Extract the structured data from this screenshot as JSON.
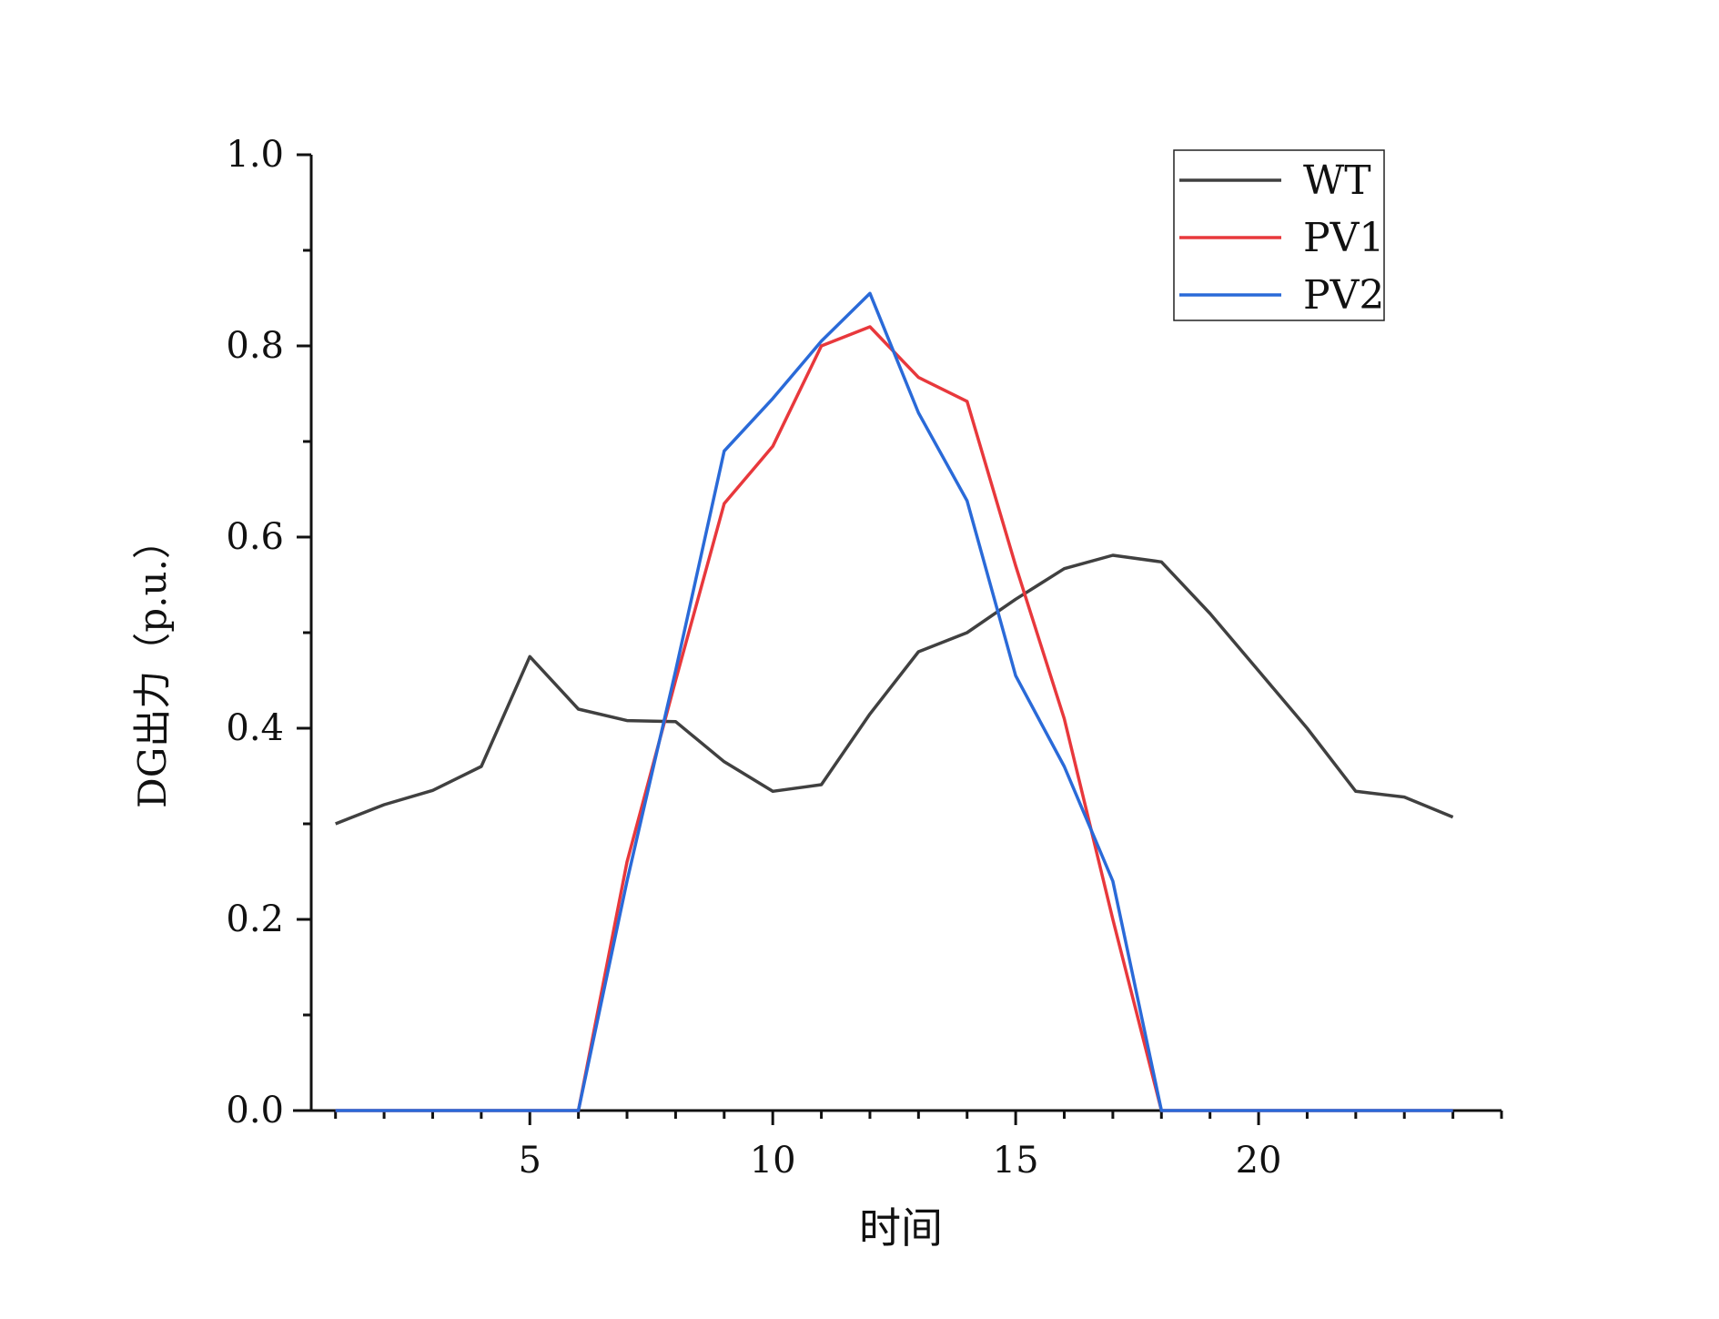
{
  "chart_data": {
    "type": "line",
    "title": "",
    "xlabel": "时间",
    "ylabel": "DG出力（p.u.）",
    "xlim": [
      0.5,
      25
    ],
    "ylim": [
      0,
      1.0
    ],
    "x_ticks": [
      5,
      10,
      15,
      20
    ],
    "x_tick_labels": [
      "5",
      "10",
      "15",
      "20"
    ],
    "y_ticks": [
      0,
      0.2,
      0.4,
      0.6,
      0.8,
      1.0
    ],
    "y_tick_labels": [
      "0.0",
      "0.2",
      "0.4",
      "0.6",
      "0.8",
      "1.0"
    ],
    "grid": false,
    "legend_position": "top-right",
    "x": [
      1,
      2,
      3,
      4,
      5,
      6,
      7,
      8,
      9,
      10,
      11,
      12,
      13,
      14,
      15,
      16,
      17,
      18,
      19,
      20,
      21,
      22,
      23,
      24
    ],
    "series": [
      {
        "name": "WT",
        "color": "#404040",
        "values": [
          0.3,
          0.32,
          0.335,
          0.36,
          0.475,
          0.42,
          0.408,
          0.407,
          0.365,
          0.334,
          0.341,
          0.415,
          0.48,
          0.5,
          0.535,
          0.567,
          0.581,
          0.574,
          0.52,
          0.46,
          0.4,
          0.334,
          0.328,
          0.307
        ]
      },
      {
        "name": "PV1",
        "color": "#e8383c",
        "values": [
          0,
          0,
          0,
          0,
          0,
          0,
          0.26,
          0.45,
          0.635,
          0.695,
          0.8,
          0.82,
          0.767,
          0.742,
          0.57,
          0.41,
          0.2,
          0,
          0,
          0,
          0,
          0,
          0,
          0
        ]
      },
      {
        "name": "PV2",
        "color": "#2a6ad8",
        "values": [
          0,
          0,
          0,
          0,
          0,
          0,
          0.24,
          0.46,
          0.69,
          0.745,
          0.805,
          0.855,
          0.73,
          0.638,
          0.455,
          0.36,
          0.24,
          0,
          0,
          0,
          0,
          0,
          0,
          0
        ]
      }
    ]
  }
}
